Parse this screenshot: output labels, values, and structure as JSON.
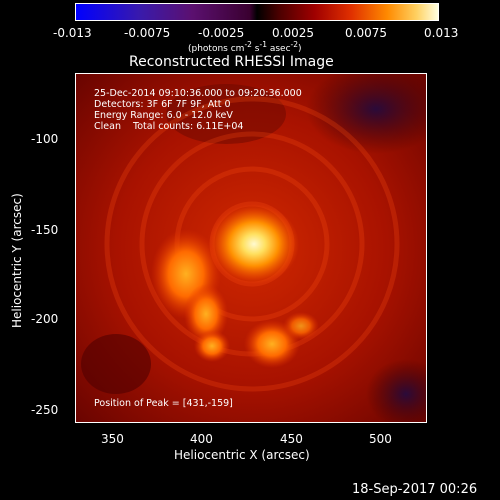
{
  "colorbar": {
    "ticks": [
      "-0.013",
      "-0.0075",
      "-0.0025",
      "0.0025",
      "0.0075",
      "0.013"
    ],
    "units_pre": "(photons cm",
    "units_exp1": "-2",
    "units_mid": " s",
    "units_exp2": "-1",
    "units_mid2": " asec",
    "units_exp3": "-2",
    "units_post": ")"
  },
  "title": "Reconstructed RHESSI Image",
  "info": {
    "line1": "25-Dec-2014 09:10:36.000 to 09:20:36.000",
    "line2": "Detectors: 3F 6F 7F 9F, Att 0",
    "line3": "Energy Range: 6.0 - 12.0 keV",
    "line4": "Clean    Total counts: 6.11E+04",
    "peak": "Position of Peak = [431,-159]"
  },
  "y_axis": {
    "title": "Heliocentric  Y (arcsec)",
    "ticks": [
      "-100",
      "-150",
      "-200",
      "-250"
    ]
  },
  "x_axis": {
    "title": "Heliocentric X (arcsec)",
    "ticks": [
      "350",
      "400",
      "450",
      "500"
    ]
  },
  "footer": {
    "date": "18-Sep-2017 00:26"
  },
  "colors": {
    "background": "#000000",
    "image_base": "#b01800",
    "peak": "#fff6b0"
  }
}
